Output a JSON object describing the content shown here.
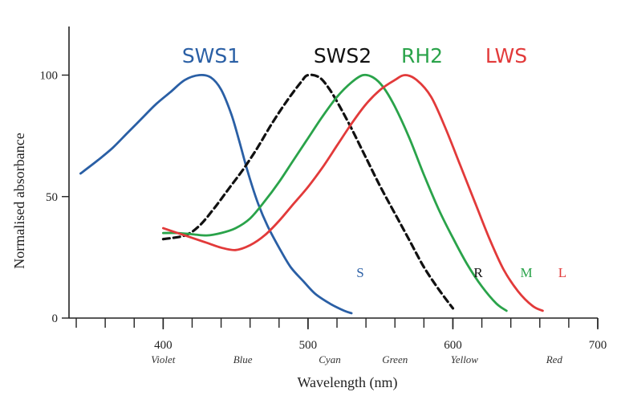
{
  "chart_data": {
    "type": "line",
    "xlabel": "Wavelength (nm)",
    "ylabel": "Normalised absorbance",
    "xlim": [
      335,
      700
    ],
    "ylim": [
      0,
      120
    ],
    "x_ticks": [
      400,
      500,
      600,
      700
    ],
    "y_ticks": [
      0,
      50,
      100
    ],
    "minor_x_step": 20,
    "grid": false,
    "color_bands": [
      "Violet",
      "Blue",
      "Cyan",
      "Green",
      "Yellow",
      "Red"
    ],
    "series": [
      {
        "name": "SWS1",
        "end_label": "S",
        "color": "#2a5fa5",
        "dash": false,
        "x": [
          343,
          355,
          365,
          375,
          385,
          395,
          405,
          415,
          425,
          433,
          440,
          447,
          452,
          458,
          465,
          472,
          480,
          488,
          497,
          505,
          515,
          525,
          530
        ],
        "y": [
          59.5,
          65,
          70,
          76,
          82,
          88,
          93,
          98,
          100,
          99,
          94,
          84,
          74,
          61,
          48,
          38,
          29,
          21,
          15,
          10,
          6,
          3,
          2
        ]
      },
      {
        "name": "SWS2",
        "end_label": "R",
        "color": "#111111",
        "dash": true,
        "x": [
          400,
          415,
          425,
          435,
          445,
          455,
          465,
          475,
          485,
          495,
          500,
          508,
          515,
          522,
          530,
          540,
          550,
          560,
          570,
          580,
          590,
          600
        ],
        "y": [
          32.5,
          34,
          38,
          45,
          53,
          61,
          70,
          80,
          89,
          97,
          100,
          99,
          94,
          87,
          78,
          66,
          54,
          43,
          32,
          21,
          12,
          4
        ]
      },
      {
        "name": "RH2",
        "end_label": "M",
        "color": "#2aa34a",
        "dash": false,
        "x": [
          400,
          410,
          420,
          430,
          440,
          450,
          460,
          470,
          480,
          490,
          500,
          510,
          520,
          530,
          538,
          545,
          552,
          560,
          570,
          580,
          590,
          600,
          610,
          620,
          630,
          637
        ],
        "y": [
          35,
          35,
          34.5,
          34,
          35,
          37,
          41,
          48,
          56,
          65,
          74,
          83,
          91,
          97,
          100,
          99,
          95,
          87,
          74,
          59,
          45,
          33,
          22,
          13,
          6,
          3
        ]
      },
      {
        "name": "LWS",
        "end_label": "L",
        "color": "#e23a3a",
        "dash": false,
        "x": [
          400,
          415,
          430,
          440,
          450,
          460,
          470,
          480,
          490,
          500,
          510,
          520,
          530,
          540,
          550,
          560,
          567,
          575,
          585,
          595,
          605,
          615,
          625,
          635,
          645,
          655,
          662
        ],
        "y": [
          37,
          34,
          31,
          29,
          28,
          30,
          34,
          40,
          47,
          54,
          62,
          71,
          80,
          88,
          94,
          98,
          100,
          98,
          91,
          78,
          63,
          48,
          33,
          20,
          11,
          5,
          3
        ]
      }
    ]
  }
}
